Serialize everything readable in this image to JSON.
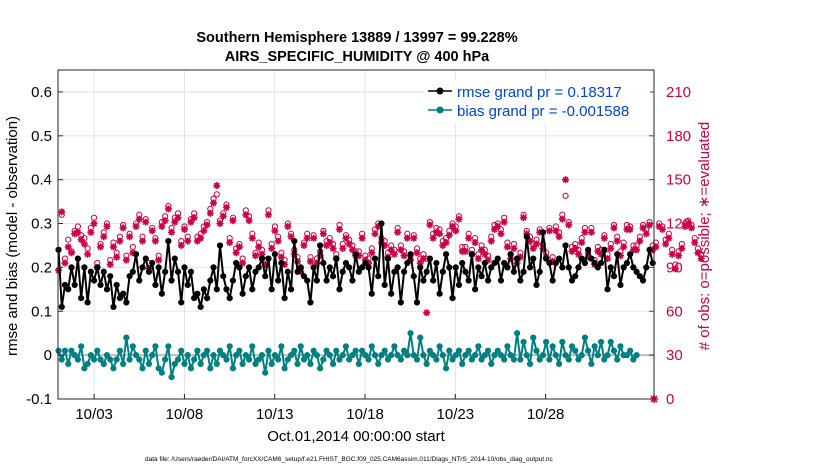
{
  "chart_data": {
    "type": "line",
    "title_line1": "Southern Hemisphere 13889 / 13997 = 99.228%",
    "title_line2": "AIRS_SPECIFIC_HUMIDITY @ 400 hPa",
    "xlabel": "Oct.01,2014 00:00:00 start",
    "ylabel": "rmse and bias (model - observation)",
    "ylabel_right": "# of obs: o=possible; ∗=evaluated",
    "footnote": "data file: /Users/raeder/DAI/ATM_forcXX/CAM6_setup/f.e21.FHIST_BGC.f09_025.CAM6assim.011/Diags_NTrS_2014-10/obs_diag_output.nc",
    "x_range": [
      1,
      34
    ],
    "x_ticks": [
      3,
      8,
      13,
      18,
      23,
      28
    ],
    "x_tick_labels": [
      "10/03",
      "10/08",
      "10/13",
      "10/18",
      "10/23",
      "10/28"
    ],
    "ylim": [
      -0.1,
      0.65
    ],
    "y_ticks": [
      -0.1,
      0,
      0.1,
      0.2,
      0.3,
      0.4,
      0.5,
      0.6
    ],
    "y_tick_labels": [
      "-0.1",
      "0",
      "0.1",
      "0.2",
      "0.3",
      "0.4",
      "0.5",
      "0.6"
    ],
    "y2lim": [
      0,
      225
    ],
    "y2_ticks": [
      0,
      30,
      60,
      90,
      120,
      150,
      180,
      210
    ],
    "y2_tick_labels": [
      "0",
      "30",
      "60",
      "90",
      "120",
      "150",
      "180",
      "210"
    ],
    "grid": true,
    "legend_position": "top-right",
    "series": [
      {
        "name": "rmse grand pr = 0.18317",
        "color": "#000000",
        "values": [
          0.24,
          0.11,
          0.16,
          0.15,
          0.2,
          0.16,
          0.22,
          0.13,
          0.2,
          0.12,
          0.19,
          0.17,
          0.2,
          0.16,
          0.19,
          0.15,
          0.18,
          0.11,
          0.16,
          0.13,
          0.14,
          0.12,
          0.18,
          0.19,
          0.23,
          0.17,
          0.2,
          0.22,
          0.19,
          0.21,
          0.16,
          0.2,
          0.14,
          0.19,
          0.26,
          0.17,
          0.22,
          0.19,
          0.12,
          0.2,
          0.16,
          0.19,
          0.13,
          0.14,
          0.11,
          0.15,
          0.13,
          0.17,
          0.2,
          0.15,
          0.25,
          0.18,
          0.15,
          0.13,
          0.17,
          0.21,
          0.2,
          0.14,
          0.18,
          0.2,
          0.15,
          0.19,
          0.2,
          0.22,
          0.18,
          0.22,
          0.15,
          0.23,
          0.17,
          0.21,
          0.13,
          0.19,
          0.15,
          0.26,
          0.19,
          0.2,
          0.18,
          0.17,
          0.12,
          0.2,
          0.17,
          0.25,
          0.21,
          0.17,
          0.2,
          0.18,
          0.22,
          0.15,
          0.19,
          0.21,
          0.2,
          0.17,
          0.23,
          0.19,
          0.2,
          0.21,
          0.2,
          0.14,
          0.22,
          0.18,
          0.3,
          0.16,
          0.22,
          0.14,
          0.19,
          0.2,
          0.12,
          0.19,
          0.21,
          0.23,
          0.18,
          0.12,
          0.2,
          0.17,
          0.19,
          0.22,
          0.17,
          0.21,
          0.14,
          0.19,
          0.23,
          0.2,
          0.13,
          0.2,
          0.16,
          0.21,
          0.19,
          0.17,
          0.23,
          0.15,
          0.2,
          0.18,
          0.21,
          0.17,
          0.2,
          0.21,
          0.22,
          0.17,
          0.21,
          0.2,
          0.23,
          0.19,
          0.22,
          0.17,
          0.19,
          0.27,
          0.2,
          0.22,
          0.16,
          0.19,
          0.28,
          0.22,
          0.21,
          0.17,
          0.21,
          0.22,
          0.2,
          0.25,
          0.2,
          0.17,
          0.18,
          0.2,
          0.22,
          0.21,
          0.24,
          0.22,
          0.21,
          0.2,
          0.21,
          0.24,
          0.15,
          0.2,
          0.18,
          0.23,
          0.16,
          0.2,
          0.21,
          0.23,
          0.2,
          0.19,
          0.18,
          0.17,
          0.2,
          0.24,
          0.21
        ]
      },
      {
        "name": "bias grand pr = -0.001588",
        "color": "#008080",
        "values": [
          0.01,
          -0.01,
          0.01,
          -0.02,
          0.01,
          0.0,
          -0.01,
          0.02,
          -0.03,
          -0.02,
          0.0,
          -0.01,
          0.01,
          -0.01,
          -0.02,
          0.0,
          -0.01,
          -0.03,
          -0.01,
          0.01,
          -0.02,
          0.04,
          -0.01,
          0.02,
          0.0,
          -0.01,
          -0.03,
          0.01,
          -0.02,
          0.0,
          0.02,
          -0.03,
          -0.04,
          -0.01,
          0.02,
          -0.05,
          -0.02,
          -0.01,
          0.01,
          -0.02,
          0.0,
          -0.03,
          -0.01,
          0.01,
          -0.02,
          0.0,
          0.01,
          -0.03,
          0.0,
          -0.02,
          0.01,
          0.0,
          -0.01,
          0.02,
          -0.03,
          0.0,
          0.01,
          -0.02,
          0.0,
          -0.01,
          0.02,
          -0.02,
          -0.01,
          0.0,
          -0.04,
          0.01,
          -0.02,
          0.0,
          -0.01,
          0.02,
          -0.03,
          -0.01,
          0.0,
          0.01,
          -0.02,
          0.02,
          -0.01,
          0.0,
          -0.02,
          0.01,
          0.0,
          -0.03,
          -0.01,
          0.01,
          0.0,
          -0.02,
          0.01,
          -0.01,
          0.0,
          0.02,
          -0.01,
          0.0,
          0.01,
          -0.02,
          0.01,
          0.0,
          -0.01,
          0.02,
          0.0,
          -0.02,
          0.0,
          0.01,
          -0.01,
          0.0,
          0.02,
          0.0,
          -0.01,
          0.01,
          0.0,
          0.05,
          0.0,
          -0.01,
          0.04,
          0.0,
          -0.02,
          0.01,
          0.0,
          -0.01,
          0.02,
          0.0,
          -0.03,
          0.01,
          -0.01,
          0.0,
          0.01,
          -0.02,
          0.0,
          0.01,
          -0.01,
          0.0,
          0.02,
          -0.01,
          0.0,
          0.01,
          -0.02,
          0.0,
          0.01,
          0.0,
          -0.01,
          0.02,
          0.0,
          -0.01,
          0.05,
          -0.01,
          0.03,
          0.0,
          -0.02,
          0.04,
          0.01,
          -0.01,
          0.0,
          0.03,
          -0.01,
          0.02,
          0.0,
          -0.02,
          0.03,
          0.0,
          -0.01,
          0.02,
          0.01,
          -0.01,
          0.0,
          0.04,
          0.01,
          -0.02,
          0.02,
          0.0,
          0.03,
          -0.01,
          0.0,
          0.03,
          0.01,
          -0.01,
          0.02,
          0.0,
          0.0,
          0.01,
          -0.01,
          0.0
        ]
      },
      {
        "name": "obs possible",
        "color": "#cc0044",
        "values": [
          102,
          126,
          96,
          109,
          101,
          115,
          118,
          112,
          110,
          103,
          117,
          124,
          93,
          106,
          114,
          120,
          95,
          107,
          100,
          111,
          119,
          98,
          113,
          104,
          120,
          126,
          111,
          123,
          93,
          117,
          110,
          98,
          121,
          125,
          132,
          117,
          124,
          127,
          108,
          118,
          111,
          123,
          127,
          111,
          113,
          118,
          121,
          130,
          137,
          140,
          122,
          127,
          133,
          110,
          124,
          103,
          106,
          96,
          129,
          125,
          113,
          100,
          107,
          102,
          95,
          129,
          106,
          118,
          111,
          100,
          95,
          120,
          113,
          102,
          97,
          89,
          107,
          113,
          97,
          112,
          96,
          101,
          115,
          108,
          110,
          106,
          99,
          119,
          106,
          112,
          109,
          105,
          101,
          101,
          113,
          98,
          96,
          103,
          116,
          120,
          110,
          108,
          100,
          105,
          102,
          117,
          105,
          101,
          113,
          98,
          112,
          103,
          96,
          99,
          96,
          121,
          113,
          117,
          116,
          108,
          110,
          115,
          120,
          118,
          125,
          104,
          104,
          113,
          102,
          110,
          99,
          105,
          102,
          98,
          111,
          119,
          120,
          116,
          124,
          107,
          99,
          106,
          96,
          100,
          126,
          115,
          111,
          106,
          109,
          116,
          106,
          100,
          117,
          97,
          118,
          114,
          126,
          139,
          121,
          104,
          106,
          102,
          110,
          117,
          100,
          117,
          95,
          104,
          102,
          112,
          99,
          106,
          119,
          111,
          101,
          107,
          119,
          118,
          105,
          105,
          111,
          119,
          116,
          121,
          105,
          107,
          120,
          118,
          109,
          113,
          102,
          92,
          101,
          106,
          120,
          122,
          119,
          110,
          103,
          99
        ]
      },
      {
        "name": "obs evaluated",
        "color": "#cc0044",
        "values": [
          88,
          128,
          93,
          104,
          100,
          113,
          114,
          109,
          106,
          99,
          114,
          120,
          90,
          104,
          111,
          118,
          92,
          104,
          97,
          108,
          117,
          95,
          111,
          100,
          118,
          123,
          108,
          121,
          89,
          115,
          108,
          95,
          118,
          122,
          130,
          114,
          121,
          124,
          105,
          116,
          108,
          121,
          124,
          108,
          110,
          115,
          119,
          127,
          134,
          146,
          120,
          125,
          131,
          107,
          122,
          100,
          104,
          93,
          126,
          122,
          110,
          98,
          104,
          99,
          92,
          126,
          103,
          115,
          108,
          97,
          92,
          118,
          111,
          99,
          94,
          87,
          105,
          110,
          94,
          110,
          93,
          98,
          113,
          105,
          107,
          103,
          96,
          116,
          103,
          110,
          106,
          102,
          98,
          98,
          110,
          95,
          93,
          100,
          113,
          118,
          107,
          105,
          97,
          102,
          99,
          114,
          102,
          98,
          110,
          95,
          110,
          100,
          93,
          96,
          59,
          119,
          110,
          114,
          113,
          105,
          107,
          112,
          118,
          115,
          123,
          101,
          101,
          110,
          99,
          107,
          96,
          102,
          99,
          95,
          108,
          116,
          118,
          113,
          121,
          104,
          96,
          103,
          93,
          97,
          124,
          113,
          108,
          103,
          106,
          114,
          103,
          97,
          115,
          94,
          115,
          111,
          123,
          150,
          119,
          101,
          103,
          99,
          107,
          114,
          97,
          114,
          92,
          101,
          99,
          110,
          96,
          103,
          117,
          108,
          98,
          104,
          116,
          116,
          102,
          102,
          108,
          117,
          113,
          119,
          102,
          104,
          118,
          116,
          106,
          110,
          99,
          89,
          98,
          103,
          118,
          120,
          117,
          107,
          100,
          96
        ]
      }
    ]
  }
}
